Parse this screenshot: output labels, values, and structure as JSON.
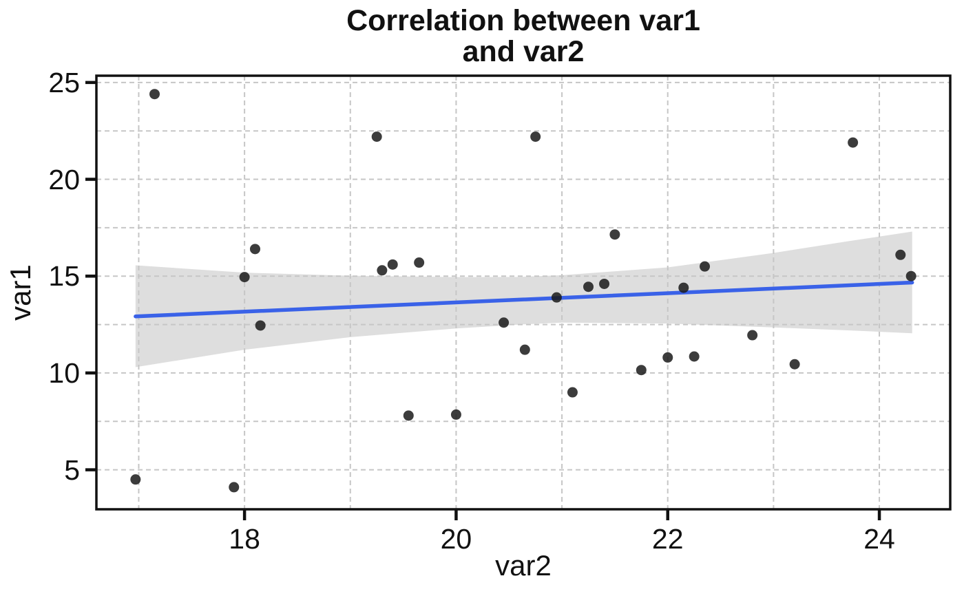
{
  "chart_data": {
    "type": "scatter",
    "title": "Correlation between var1\nand var2",
    "xlabel": "var2",
    "ylabel": "var1",
    "xlim": [
      16.6,
      24.67
    ],
    "ylim": [
      2.96,
      25.35
    ],
    "x_ticks": [
      18,
      20,
      22,
      24
    ],
    "y_ticks": [
      5,
      10,
      15,
      20,
      25
    ],
    "x_gridlines": [
      17,
      18,
      19,
      20,
      21,
      22,
      23,
      24
    ],
    "y_gridlines": [
      5,
      7.5,
      10,
      12.5,
      15,
      17.5,
      20,
      22.5,
      25
    ],
    "grid_style": "dashed",
    "legend": "none",
    "points": [
      [
        16.97,
        4.5
      ],
      [
        17.15,
        24.4
      ],
      [
        17.9,
        4.1
      ],
      [
        18.0,
        14.95
      ],
      [
        18.1,
        16.4
      ],
      [
        18.15,
        12.45
      ],
      [
        19.25,
        22.2
      ],
      [
        19.3,
        15.3
      ],
      [
        19.4,
        15.6
      ],
      [
        19.55,
        7.8
      ],
      [
        19.65,
        15.7
      ],
      [
        20.0,
        7.85
      ],
      [
        20.45,
        12.6
      ],
      [
        20.65,
        11.2
      ],
      [
        20.75,
        22.2
      ],
      [
        20.95,
        13.9
      ],
      [
        21.1,
        9.0
      ],
      [
        21.25,
        14.45
      ],
      [
        21.4,
        14.6
      ],
      [
        21.5,
        17.15
      ],
      [
        21.75,
        10.15
      ],
      [
        22.0,
        10.8
      ],
      [
        22.15,
        14.4
      ],
      [
        22.25,
        10.85
      ],
      [
        22.35,
        15.5
      ],
      [
        22.8,
        11.95
      ],
      [
        23.2,
        10.45
      ],
      [
        23.75,
        21.9
      ],
      [
        24.2,
        16.1
      ],
      [
        24.3,
        15.0
      ]
    ],
    "regression_line": {
      "x": [
        16.97,
        24.31
      ],
      "y": [
        12.92,
        14.67
      ],
      "color": "#3a62e8"
    },
    "confidence_band": {
      "x": [
        16.97,
        18.0,
        19.0,
        20.0,
        20.6,
        21.0,
        22.0,
        23.0,
        23.7,
        24.31
      ],
      "top": [
        15.56,
        15.18,
        15.02,
        14.95,
        14.96,
        15.05,
        15.45,
        16.2,
        16.8,
        17.3
      ],
      "bottom": [
        10.3,
        11.2,
        11.85,
        12.3,
        12.5,
        12.6,
        12.55,
        12.35,
        12.2,
        12.05
      ],
      "color": "#dcdcdc"
    },
    "point_color": "#1a1a1a",
    "grid_color": "#c6c6c6",
    "frame_color": "#111111",
    "background": "#ffffff"
  }
}
